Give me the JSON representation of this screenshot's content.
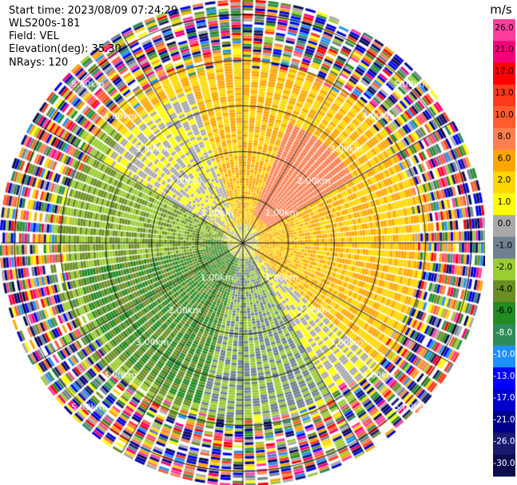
{
  "header": {
    "start_time": "Start time: 2023/08/09 07:24:29",
    "instrument": "WLS200s-181",
    "field": "Field: VEL",
    "elevation": "Elevation(deg): 35.30",
    "nrays": "NRays: 120"
  },
  "colorbar": {
    "unit": "m/s",
    "ticks": [
      "26.0",
      "21.0",
      "17.0",
      "13.0",
      "10.0",
      "8.0",
      "6.0",
      "2.0",
      "1.0",
      "0.0",
      "-1.0",
      "-2.0",
      "-4.0",
      "-6.0",
      "-8.0",
      "-10.0",
      "-13.0",
      "-17.0",
      "-21.0",
      "-26.0",
      "-30.0"
    ],
    "colors": [
      "#ff3ea0",
      "#f5007a",
      "#ff0000",
      "#ff3a1a",
      "#ff5c2e",
      "#ff7f50",
      "#ffa500",
      "#ffd700",
      "#ffff00",
      "#a9a9a9",
      "#708090",
      "#9acd32",
      "#6b8e23",
      "#228b22",
      "#2e8b57",
      "#1e90ff",
      "#0000ff",
      "#0000cd",
      "#00008b",
      "#191970",
      "#0b0b50"
    ]
  },
  "chart_data": {
    "type": "heatmap",
    "projection": "polar PPI",
    "field": "VEL",
    "units": "m/s",
    "nrays": 120,
    "elevation_deg": 35.3,
    "range_rings_km": [
      1,
      2,
      3,
      4,
      5
    ],
    "range_labels": [
      "1.00km",
      "2.00km",
      "3.00km",
      "4.00km",
      "5.00km"
    ],
    "max_range_km": 5.3,
    "color_range": [
      -30,
      26
    ],
    "azimuth_lines_deg": [
      0,
      30,
      60,
      90,
      120,
      150,
      180,
      210,
      240,
      270,
      300,
      330
    ],
    "regions": [
      {
        "name": "yellow-north",
        "az_from": 330,
        "az_to": 60,
        "r_from_km": 0.4,
        "r_to_km": 3.9,
        "value": 2.0
      },
      {
        "name": "orange-ne",
        "az_from": 20,
        "az_to": 95,
        "r_from_km": 0.6,
        "r_to_km": 2.8,
        "value": 7.0
      },
      {
        "name": "yellow-east",
        "az_from": 60,
        "az_to": 140,
        "r_from_km": 0.3,
        "r_to_km": 4.2,
        "value": 2.0
      },
      {
        "name": "gray-se",
        "az_from": 130,
        "az_to": 175,
        "r_from_km": 0.4,
        "r_to_km": 4.0,
        "value": 0.0
      },
      {
        "name": "yellowgreen-s",
        "az_from": 150,
        "az_to": 195,
        "r_from_km": 0.3,
        "r_to_km": 3.8,
        "value": -2.0
      },
      {
        "name": "green-sw",
        "az_from": 195,
        "az_to": 275,
        "r_from_km": 0.3,
        "r_to_km": 3.6,
        "value": -6.0
      },
      {
        "name": "olive-w",
        "az_from": 260,
        "az_to": 310,
        "r_from_km": 0.8,
        "r_to_km": 4.0,
        "value": -4.0
      },
      {
        "name": "gray-nw",
        "az_from": 300,
        "az_to": 340,
        "r_from_km": 0.5,
        "r_to_km": 3.5,
        "value": 0.0
      }
    ],
    "outer_noise_from_km": 4.0
  }
}
